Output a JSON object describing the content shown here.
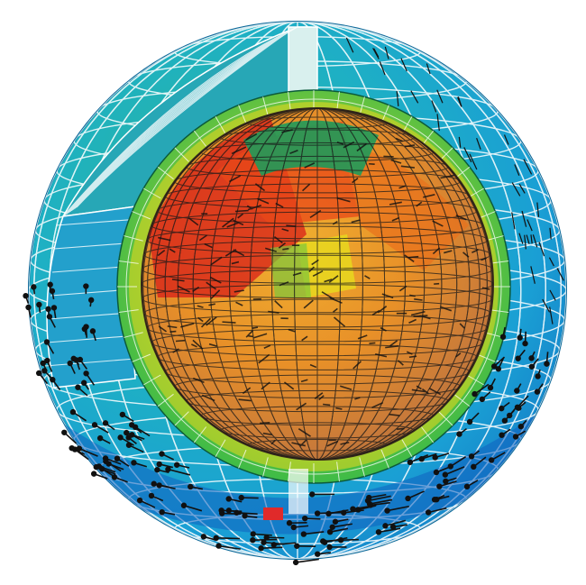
{
  "figure": {
    "description_visible_text": "",
    "colors": {
      "outer_blue": "#1aa3d6",
      "outer_cyan": "#22b8c8",
      "teal_green": "#1fae7a",
      "green": "#2db84a",
      "light_green": "#7cc63c",
      "yellow": "#e8d81e",
      "orange": "#f0a020",
      "dark_orange": "#e8701c",
      "red_orange": "#e84818",
      "red": "#d8221a",
      "tan": "#d89a48",
      "deep_blue": "#1060c0",
      "grid_white": "#ffffff",
      "grid_black": "#1a1a1a",
      "vector_black": "#111111"
    },
    "layers": [
      "outer-shell",
      "cutaway-wedge",
      "inner-mantle-ring",
      "core-sphere",
      "velocity-vectors"
    ]
  }
}
